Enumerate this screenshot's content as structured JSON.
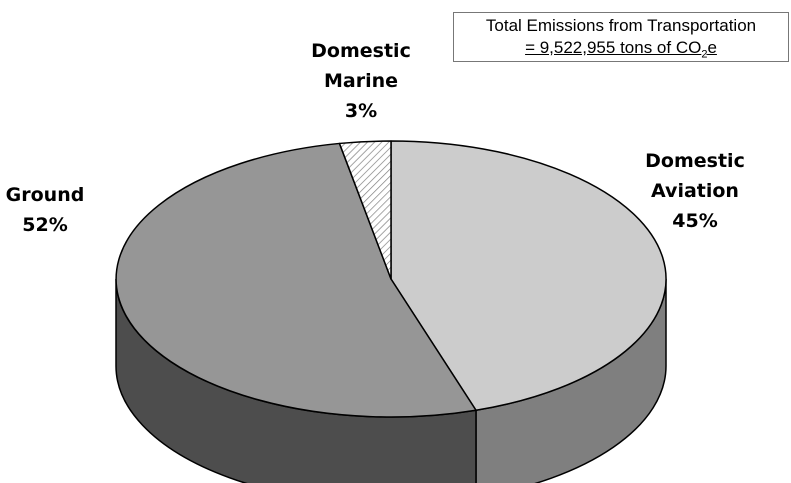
{
  "chart_data": {
    "type": "pie",
    "style": "3d",
    "categories": [
      "Domestic Aviation",
      "Ground",
      "Domestic Marine"
    ],
    "values": [
      45,
      52,
      3
    ],
    "unit": "%",
    "labels": [
      {
        "line1": "Domestic",
        "line2": "Aviation",
        "pct": "45%"
      },
      {
        "line1": "Ground",
        "line2": "",
        "pct": "52%"
      },
      {
        "line1": "Domestic",
        "line2": "Marine",
        "pct": "3%"
      }
    ],
    "colors": {
      "aviation_top": "#cccccc",
      "aviation_side": "#7f7f7f",
      "ground_top": "#969696",
      "ground_side": "#4d4d4d",
      "marine_hatch": "#808080",
      "outline": "#000000"
    },
    "annotation": {
      "line1": "Total Emissions from Transportation",
      "line2_prefix": "= 9,522,955  tons of CO",
      "line2_sub": "2",
      "line2_suffix": "e"
    }
  }
}
